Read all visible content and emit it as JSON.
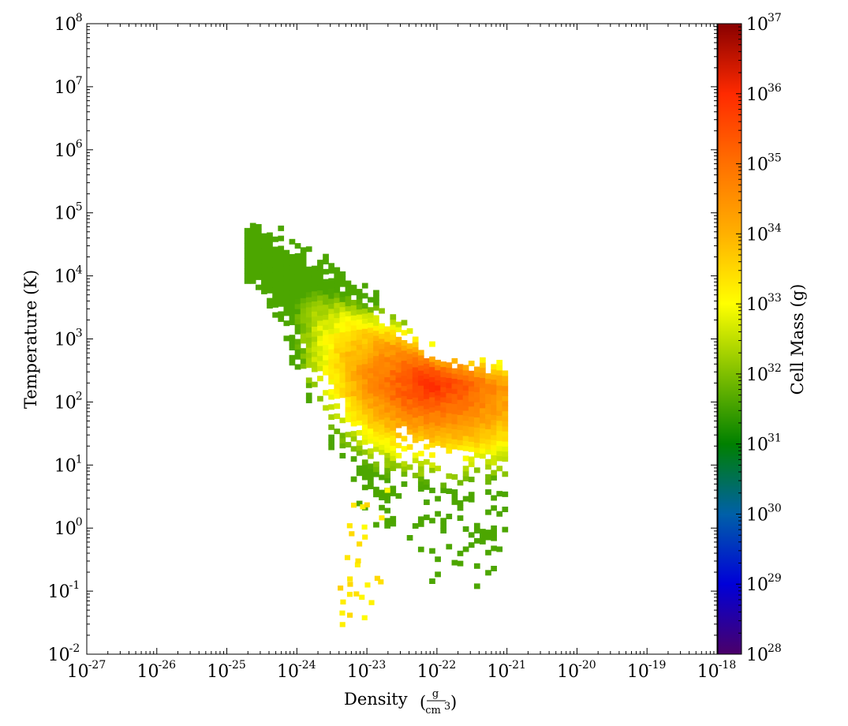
{
  "chart_data": {
    "type": "heatmap",
    "title": "",
    "xlabel": "Density",
    "xunit": {
      "numerator": "g",
      "denominator": "cm",
      "denominator_exp": "3"
    },
    "ylabel": "Temperature  (K)",
    "colorbar_label": "Cell Mass  (g)",
    "x_scale": "log",
    "y_scale": "log",
    "colorbar_scale": "log",
    "xlim_log10": [
      -27,
      -18
    ],
    "ylim_log10": [
      -2,
      8
    ],
    "clim_log10": [
      28,
      37
    ],
    "x_ticks": [
      {
        "base": "10",
        "exp": "-27"
      },
      {
        "base": "10",
        "exp": "-26"
      },
      {
        "base": "10",
        "exp": "-25"
      },
      {
        "base": "10",
        "exp": "-24"
      },
      {
        "base": "10",
        "exp": "-23"
      },
      {
        "base": "10",
        "exp": "-22"
      },
      {
        "base": "10",
        "exp": "-21"
      },
      {
        "base": "10",
        "exp": "-20"
      },
      {
        "base": "10",
        "exp": "-19"
      },
      {
        "base": "10",
        "exp": "-18"
      }
    ],
    "y_ticks": [
      {
        "base": "10",
        "exp": "-2"
      },
      {
        "base": "10",
        "exp": "-1"
      },
      {
        "base": "10",
        "exp": "0"
      },
      {
        "base": "10",
        "exp": "1"
      },
      {
        "base": "10",
        "exp": "2"
      },
      {
        "base": "10",
        "exp": "3"
      },
      {
        "base": "10",
        "exp": "4"
      },
      {
        "base": "10",
        "exp": "5"
      },
      {
        "base": "10",
        "exp": "6"
      },
      {
        "base": "10",
        "exp": "7"
      },
      {
        "base": "10",
        "exp": "8"
      }
    ],
    "colorbar_ticks": [
      {
        "base": "10",
        "exp": "28"
      },
      {
        "base": "10",
        "exp": "29"
      },
      {
        "base": "10",
        "exp": "30"
      },
      {
        "base": "10",
        "exp": "31"
      },
      {
        "base": "10",
        "exp": "32"
      },
      {
        "base": "10",
        "exp": "33"
      },
      {
        "base": "10",
        "exp": "34"
      },
      {
        "base": "10",
        "exp": "35"
      },
      {
        "base": "10",
        "exp": "36"
      },
      {
        "base": "10",
        "exp": "37"
      }
    ],
    "colormap": [
      "#4b0069",
      "#0000d8",
      "#0060a8",
      "#008000",
      "#7fbf00",
      "#ffff00",
      "#ffb000",
      "#ff7000",
      "#ff2a00",
      "#880000"
    ],
    "distribution_summary": {
      "main_ridge_log10": [
        [
          -24.6,
          4.3
        ],
        [
          -23.0,
          2.9
        ],
        [
          -22.0,
          2.25
        ],
        [
          -21.1,
          2.1
        ]
      ],
      "peak_log10": {
        "density": -22.1,
        "temperature": 2.25,
        "cell_mass": 36.0
      },
      "cold_tail_log10": [
        [
          -23.0,
          0.8
        ],
        [
          -23.1,
          -0.85
        ],
        [
          -23.2,
          -1.4
        ]
      ],
      "envelope_cell_mass_log10": 31.6
    }
  }
}
